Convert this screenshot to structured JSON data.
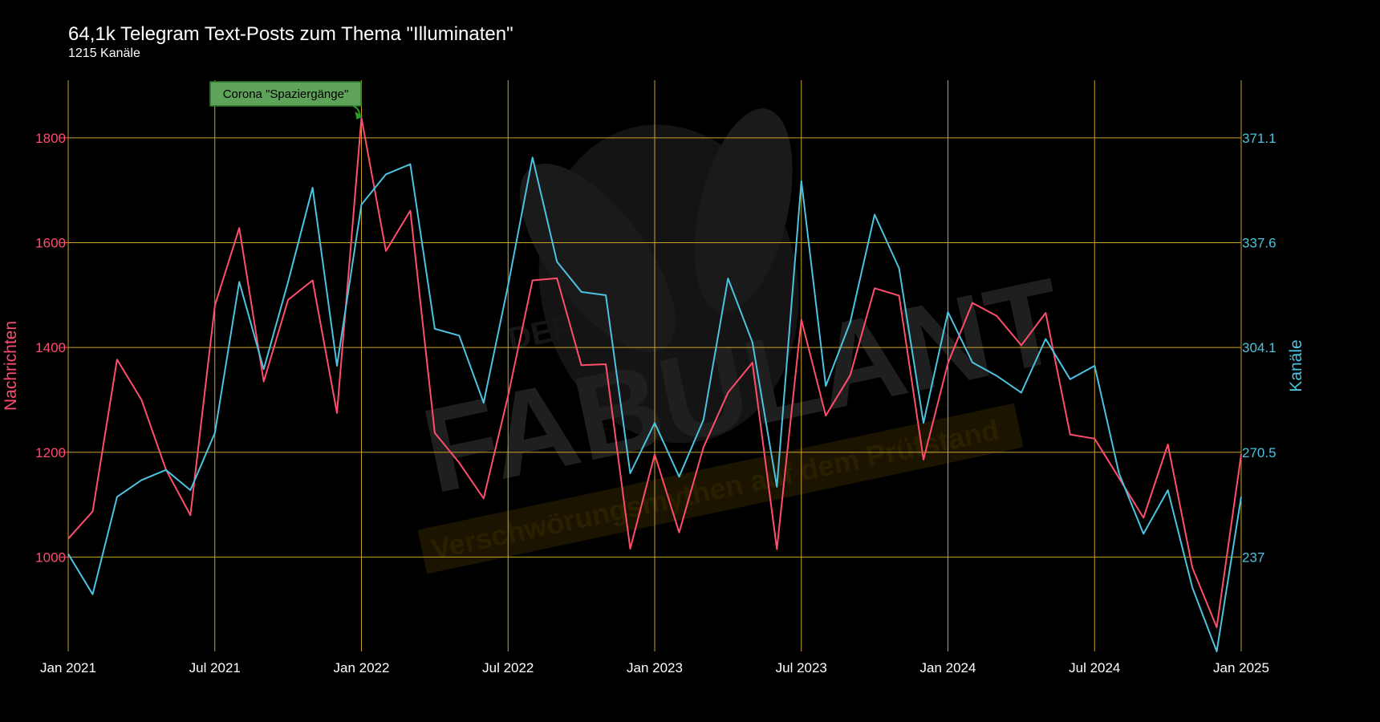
{
  "chart_data": {
    "type": "line",
    "title": "64,1k Telegram Text-Posts zum Thema \"Illuminaten\"",
    "subtitle": "1215 Kanäle",
    "x_ticks": [
      {
        "date": "2021-01-01",
        "label": "Jan 2021"
      },
      {
        "date": "2021-07-01",
        "label": "Jul 2021"
      },
      {
        "date": "2022-01-01",
        "label": "Jan 2022"
      },
      {
        "date": "2022-07-01",
        "label": "Jul 2022"
      },
      {
        "date": "2023-01-01",
        "label": "Jan 2023"
      },
      {
        "date": "2023-07-01",
        "label": "Jul 2023"
      },
      {
        "date": "2024-01-01",
        "label": "Jan 2024"
      },
      {
        "date": "2024-07-01",
        "label": "Jul 2024"
      },
      {
        "date": "2025-01-01",
        "label": "Jan 2025"
      }
    ],
    "y_left": {
      "label": "Nachrichten",
      "ticks": [
        1000,
        1200,
        1400,
        1600,
        1800
      ],
      "range": [
        820,
        1910
      ],
      "color": "#ff4d6d"
    },
    "y_right": {
      "label": "Kanäle",
      "ticks": [
        "237",
        "270.5",
        "304.1",
        "337.6",
        "371.1"
      ],
      "range": [
        214,
        384
      ],
      "color": "#4cc3e0"
    },
    "x": [
      "2021-01",
      "2021-02",
      "2021-03",
      "2021-04",
      "2021-05",
      "2021-06",
      "2021-07",
      "2021-08",
      "2021-09",
      "2021-10",
      "2021-11",
      "2021-12",
      "2022-01",
      "2022-02",
      "2022-03",
      "2022-04",
      "2022-05",
      "2022-06",
      "2022-07",
      "2022-08",
      "2022-09",
      "2022-10",
      "2022-11",
      "2022-12",
      "2023-01",
      "2023-02",
      "2023-03",
      "2023-04",
      "2023-05",
      "2023-06",
      "2023-07",
      "2023-08",
      "2023-09",
      "2023-10",
      "2023-11",
      "2023-12",
      "2024-01",
      "2024-02",
      "2024-03",
      "2024-04",
      "2024-05",
      "2024-06",
      "2024-07",
      "2024-08",
      "2024-09",
      "2024-10",
      "2024-11",
      "2024-12",
      "2025-01"
    ],
    "series": [
      {
        "name": "Nachrichten",
        "axis": "left",
        "color": "#ff4d6d",
        "values": [
          1035,
          1087,
          1377,
          1300,
          1167,
          1080,
          1480,
          1628,
          1335,
          1491,
          1528,
          1275,
          1838,
          1584,
          1661,
          1237,
          1180,
          1112,
          1308,
          1528,
          1532,
          1366,
          1368,
          1016,
          1196,
          1047,
          1210,
          1314,
          1371,
          1015,
          1453,
          1270,
          1347,
          1513,
          1499,
          1186,
          1370,
          1485,
          1460,
          1404,
          1466,
          1234,
          1226,
          1151,
          1075,
          1215,
          980,
          866,
          1196
        ]
      },
      {
        "name": "Kanäle",
        "axis": "right",
        "color": "#4cc3e0",
        "values": [
          243,
          231,
          260,
          265,
          268,
          262,
          279,
          324,
          298,
          324,
          352,
          299,
          347,
          356,
          359,
          310,
          308,
          288,
          323,
          361,
          330,
          321,
          320,
          267,
          282,
          266,
          283,
          325,
          306,
          263,
          354,
          293,
          312,
          344,
          328,
          282,
          315,
          300,
          296,
          291,
          307,
          295,
          299,
          267,
          249,
          262,
          233,
          214,
          260
        ]
      }
    ],
    "annotations": [
      {
        "text": "Corona \"Spaziergänge\"",
        "x": "2022-01",
        "series": "Nachrichten",
        "value": 1838
      }
    ],
    "grid": true,
    "watermark": {
      "line1": "DER",
      "line2": "FABULANT",
      "line3": "Verschwörungsmythen auf dem Prüfstand"
    }
  }
}
